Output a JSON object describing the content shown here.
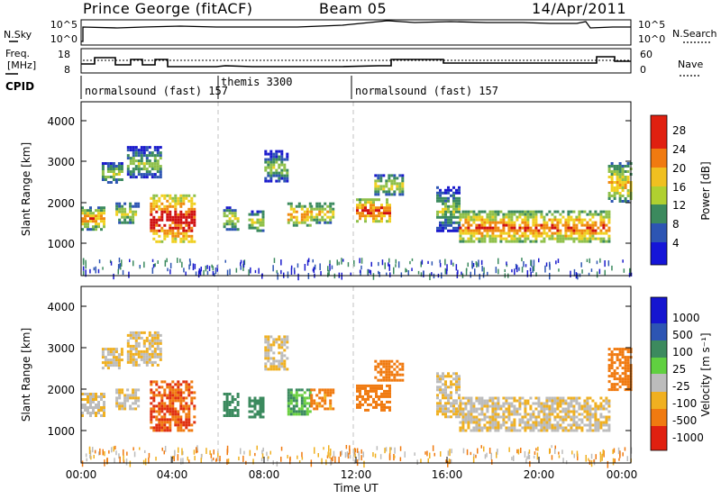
{
  "header": {
    "station": "Prince George (fitACF)",
    "beam": "Beam 05",
    "date": "14/Apr/2011"
  },
  "noise_panel": {
    "left_label": "N.Sky",
    "right_label": "N.Search",
    "left_ticks": [
      "10^5",
      "10^0"
    ],
    "right_ticks": [
      "10^5",
      "10^0"
    ]
  },
  "freq_panel": {
    "left_label_line1": "Freq.",
    "left_label_line2": "[MHz]",
    "right_label": "Nave",
    "left_ticks": [
      "18",
      "8"
    ],
    "right_ticks": [
      "60",
      "0"
    ]
  },
  "cpid": {
    "label": "CPID",
    "segments": [
      "normalsound (fast) 157",
      "themis 3300",
      "normalsound (fast) 157"
    ]
  },
  "power_panel": {
    "ylabel": "Slant Range [km]",
    "yticks": [
      "4000",
      "3000",
      "2000",
      "1000"
    ],
    "colorbar_label": "Power [dB]",
    "colorbar_ticks": [
      "28",
      "24",
      "20",
      "16",
      "12",
      "8",
      "4"
    ]
  },
  "velocity_panel": {
    "ylabel": "Slant Range [km]",
    "yticks": [
      "4000",
      "3000",
      "2000",
      "1000"
    ],
    "colorbar_label": "Velocity [m s⁻¹]",
    "colorbar_ticks": [
      "1000",
      "500",
      "100",
      "25",
      "-25",
      "-100",
      "-500",
      "-1000"
    ]
  },
  "xaxis": {
    "label": "Time UT",
    "ticks": [
      "00:00",
      "04:00",
      "08:00",
      "12:00",
      "16:00",
      "20:00",
      "00:00"
    ]
  },
  "chart_data": {
    "type": "heatmap",
    "title": "Prince George (fitACF) Beam 05 14/Apr/2011",
    "xlabel": "Time UT",
    "ylabel": "Slant Range [km]",
    "xlim_hours": [
      0,
      24
    ],
    "ylim_km": [
      180,
      4500
    ],
    "colors": {
      "power": [
        "#1a1acc",
        "#2d55b3",
        "#3b8a5e",
        "#8fc04a",
        "#f0d020",
        "#f08a10",
        "#d01010"
      ],
      "velocity_pos": [
        "#1a1acc",
        "#2d55b3",
        "#3b8a5e",
        "#6ad040"
      ],
      "velocity_neg": [
        "#bcbcbc",
        "#f0b020",
        "#f07a10",
        "#e03010"
      ]
    },
    "power_scale_db": [
      0,
      30
    ],
    "velocity_scale_ms": [
      -1000,
      1000
    ],
    "echo_regions": [
      {
        "t": [
          0.0,
          1.0
        ],
        "r": [
          1350,
          1900
        ],
        "power_db": 18,
        "velocity_ms": -20
      },
      {
        "t": [
          0.9,
          1.8
        ],
        "r": [
          2500,
          3000
        ],
        "power_db": 12,
        "velocity_ms": -20
      },
      {
        "t": [
          1.5,
          2.5
        ],
        "r": [
          1500,
          2000
        ],
        "power_db": 14,
        "velocity_ms": -20
      },
      {
        "t": [
          2.0,
          3.5
        ],
        "r": [
          2600,
          3400
        ],
        "power_db": 10,
        "velocity_ms": -20
      },
      {
        "t": [
          3.0,
          5.0
        ],
        "r": [
          1000,
          2200
        ],
        "power_db": 24,
        "velocity_ms": -500
      },
      {
        "t": [
          6.2,
          6.8
        ],
        "r": [
          1350,
          1900
        ],
        "power_db": 14,
        "velocity_ms": 150
      },
      {
        "t": [
          7.3,
          8.0
        ],
        "r": [
          1300,
          1800
        ],
        "power_db": 14,
        "velocity_ms": 200
      },
      {
        "t": [
          8.0,
          9.0
        ],
        "r": [
          2500,
          3300
        ],
        "power_db": 10,
        "velocity_ms": -20
      },
      {
        "t": [
          9.0,
          10.0
        ],
        "r": [
          1400,
          2000
        ],
        "power_db": 18,
        "velocity_ms": 100
      },
      {
        "t": [
          10.0,
          11.0
        ],
        "r": [
          1500,
          2000
        ],
        "power_db": 16,
        "velocity_ms": -120
      },
      {
        "t": [
          12.0,
          13.5
        ],
        "r": [
          1500,
          2100
        ],
        "power_db": 22,
        "velocity_ms": -200
      },
      {
        "t": [
          12.8,
          14.0
        ],
        "r": [
          2200,
          2700
        ],
        "power_db": 14,
        "velocity_ms": -150
      },
      {
        "t": [
          15.5,
          16.5
        ],
        "r": [
          1300,
          2400
        ],
        "power_db": 10,
        "velocity_ms": -20
      },
      {
        "t": [
          16.5,
          23.0
        ],
        "r": [
          1000,
          1800
        ],
        "power_db": 20,
        "velocity_ms": -20
      },
      {
        "t": [
          23.0,
          24.0
        ],
        "r": [
          2000,
          3000
        ],
        "power_db": 16,
        "velocity_ms": -300
      }
    ]
  }
}
